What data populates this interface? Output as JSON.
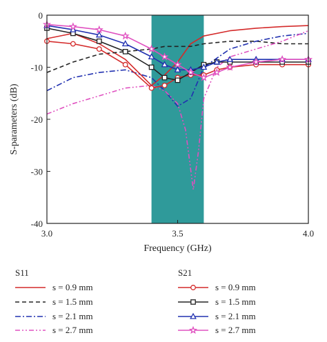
{
  "chart_data": {
    "type": "line",
    "xlabel": "Frequency (GHz)",
    "ylabel": "S-parameters (dB)",
    "xlim": [
      3.0,
      4.0
    ],
    "ylim": [
      -40,
      0
    ],
    "xticks": [
      3.0,
      3.5,
      4.0
    ],
    "xtick_labels": [
      "3.0",
      "3.5",
      "4.0"
    ],
    "yticks": [
      0,
      -10,
      -20,
      -30,
      -40
    ],
    "ytick_labels": [
      "0",
      "-10",
      "-20",
      "-30",
      "-40"
    ],
    "grid": false,
    "legend_placement": "below",
    "highlight_band": {
      "x": [
        3.4,
        3.6
      ],
      "color": "#2f9a9a"
    },
    "legend_groups": [
      "S11",
      "S21"
    ],
    "series": [
      {
        "key": "s11-0.9",
        "group": "S11",
        "name": "s = 0.9 mm",
        "color": "#d42a2a",
        "dash": "solid",
        "marker": "none",
        "x": [
          3.0,
          3.1,
          3.2,
          3.3,
          3.35,
          3.4,
          3.45,
          3.5,
          3.55,
          3.6,
          3.7,
          3.8,
          3.9,
          4.0
        ],
        "y": [
          -4.5,
          -3.5,
          -5.5,
          -8.5,
          -11,
          -13.5,
          -11.5,
          -9,
          -5.5,
          -4,
          -3,
          -2.5,
          -2.2,
          -2
        ]
      },
      {
        "key": "s11-1.5",
        "group": "S11",
        "name": "s = 1.5 mm",
        "color": "#222222",
        "dash": "dash",
        "marker": "none",
        "x": [
          3.0,
          3.1,
          3.2,
          3.3,
          3.4,
          3.45,
          3.5,
          3.55,
          3.6,
          3.7,
          3.8,
          3.9,
          4.0
        ],
        "y": [
          -11,
          -9,
          -7.5,
          -7,
          -6.5,
          -6,
          -6,
          -6,
          -5.5,
          -5,
          -5,
          -5.5,
          -5.5
        ]
      },
      {
        "key": "s11-2.1",
        "group": "S11",
        "name": "s = 2.1 mm",
        "color": "#2030b0",
        "dash": "dashdot",
        "marker": "none",
        "x": [
          3.0,
          3.1,
          3.2,
          3.3,
          3.4,
          3.45,
          3.5,
          3.55,
          3.6,
          3.7,
          3.8,
          3.9,
          4.0
        ],
        "y": [
          -14.5,
          -12,
          -11,
          -10.5,
          -12,
          -14.5,
          -17.5,
          -16,
          -10,
          -6.5,
          -5,
          -4,
          -3.5
        ]
      },
      {
        "key": "s11-2.7",
        "group": "S11",
        "name": "s = 2.7 mm",
        "color": "#e050c0",
        "dash": "dashdotdot",
        "marker": "none",
        "x": [
          3.0,
          3.1,
          3.2,
          3.3,
          3.4,
          3.45,
          3.5,
          3.53,
          3.56,
          3.58,
          3.6,
          3.65,
          3.7,
          3.8,
          3.9,
          4.0
        ],
        "y": [
          -19,
          -17,
          -15.5,
          -14,
          -13.5,
          -14.5,
          -17,
          -22,
          -33.5,
          -26,
          -16,
          -10,
          -8,
          -6.5,
          -5,
          -3
        ]
      },
      {
        "key": "s21-0.9",
        "group": "S21",
        "name": "s = 0.9 mm",
        "color": "#d42a2a",
        "dash": "solid",
        "marker": "circle",
        "x": [
          3.0,
          3.1,
          3.2,
          3.3,
          3.4,
          3.45,
          3.5,
          3.55,
          3.6,
          3.65,
          3.7,
          3.8,
          3.9,
          4.0
        ],
        "y": [
          -5,
          -5.5,
          -6.5,
          -9.5,
          -14,
          -13.5,
          -12,
          -11.5,
          -11.5,
          -10.5,
          -10,
          -9.5,
          -9.5,
          -9.5
        ]
      },
      {
        "key": "s21-1.5",
        "group": "S21",
        "name": "s = 1.5 mm",
        "color": "#222222",
        "dash": "solid",
        "marker": "square",
        "x": [
          3.0,
          3.1,
          3.2,
          3.3,
          3.4,
          3.45,
          3.5,
          3.55,
          3.6,
          3.65,
          3.7,
          3.8,
          3.9,
          4.0
        ],
        "y": [
          -2.5,
          -3.5,
          -5,
          -7,
          -10,
          -12,
          -12.5,
          -11,
          -9.5,
          -9,
          -9,
          -9,
          -9,
          -9
        ]
      },
      {
        "key": "s21-2.1",
        "group": "S21",
        "name": "s = 2.1 mm",
        "color": "#2030b0",
        "dash": "solid",
        "marker": "triangle",
        "x": [
          3.0,
          3.1,
          3.2,
          3.3,
          3.4,
          3.45,
          3.5,
          3.55,
          3.6,
          3.65,
          3.7,
          3.8,
          3.9,
          4.0
        ],
        "y": [
          -2,
          -2.8,
          -3.8,
          -5.5,
          -8,
          -9.5,
          -10.5,
          -10.5,
          -10,
          -9,
          -8.5,
          -8.5,
          -8.5,
          -8.5
        ]
      },
      {
        "key": "s21-2.7",
        "group": "S21",
        "name": "s = 2.7 mm",
        "color": "#e050c0",
        "dash": "solid",
        "marker": "star",
        "x": [
          3.0,
          3.1,
          3.2,
          3.3,
          3.4,
          3.45,
          3.5,
          3.55,
          3.6,
          3.65,
          3.7,
          3.8,
          3.9,
          4.0
        ],
        "y": [
          -1.8,
          -2.2,
          -2.8,
          -4,
          -6.5,
          -8,
          -9.5,
          -11,
          -12,
          -11,
          -10,
          -9,
          -8.5,
          -8.5
        ]
      }
    ]
  }
}
